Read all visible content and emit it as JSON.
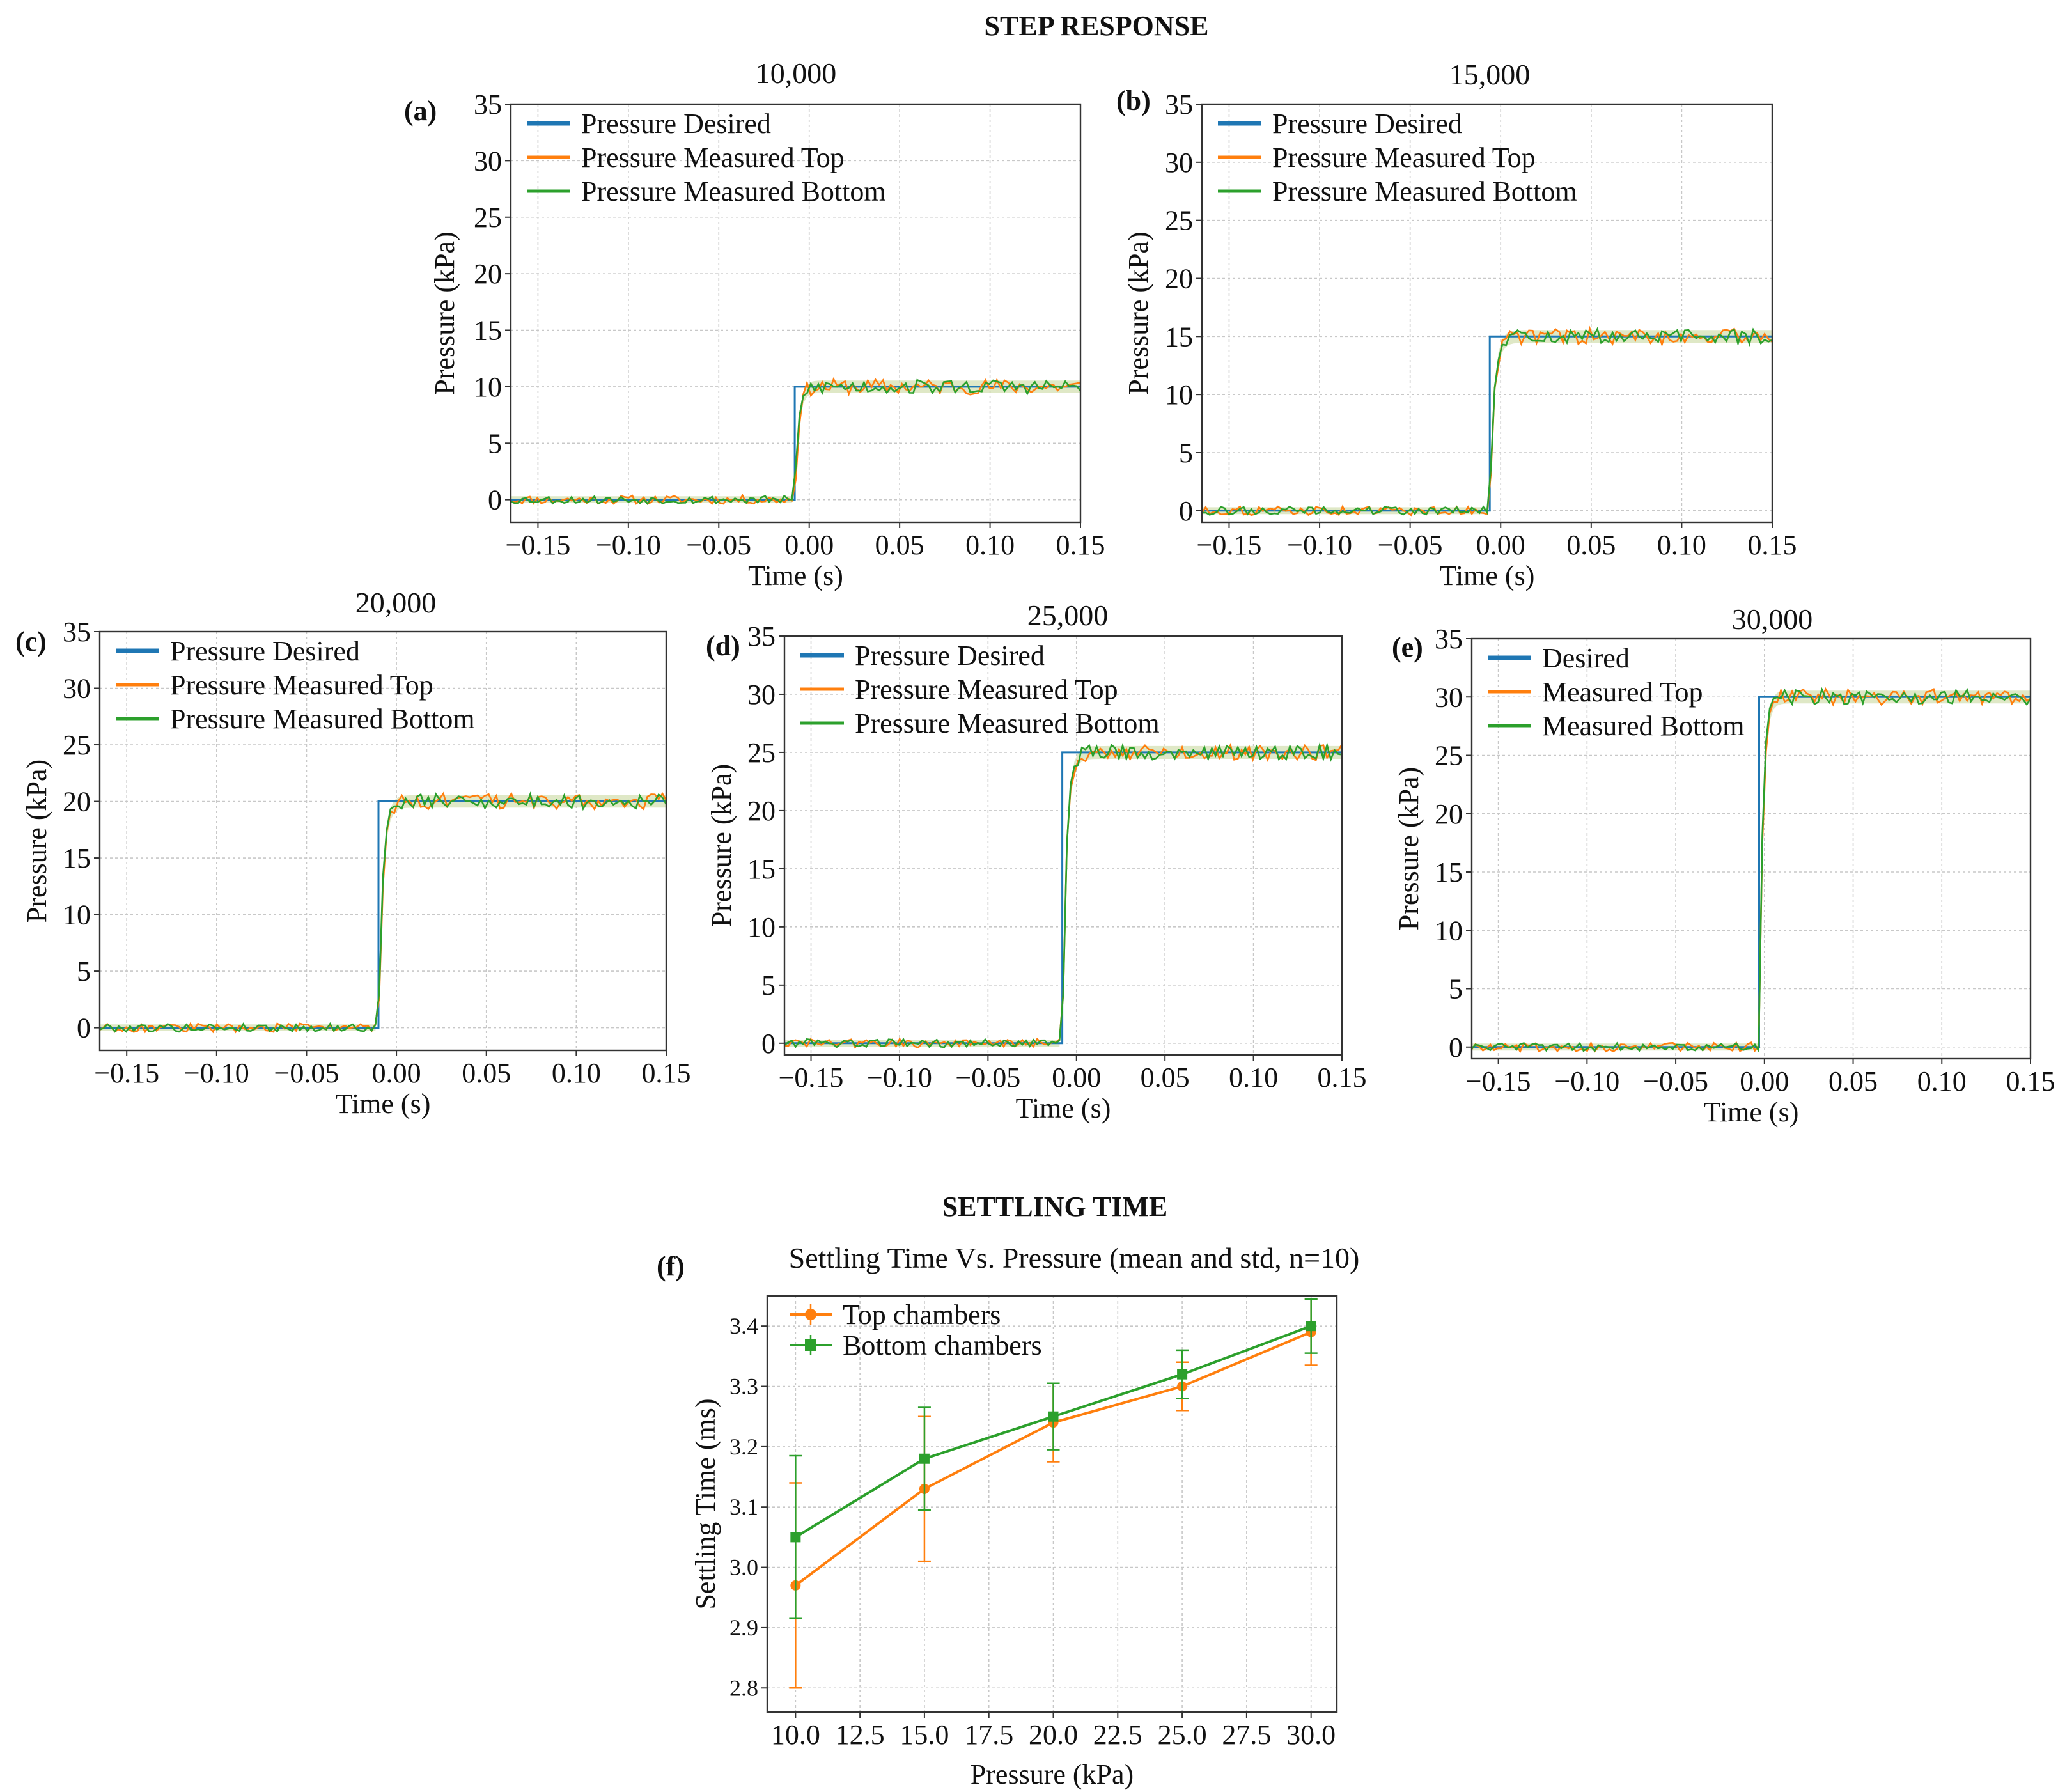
{
  "sections": {
    "step_response_title": "STEP RESPONSE",
    "settling_time_title": "SETTLING TIME"
  },
  "colors": {
    "desired": "#1f77b4",
    "measured_top": "#ff7f0e",
    "measured_bottom": "#2ca02c",
    "band": "#c9d8a0"
  },
  "chart_data": [
    {
      "id": "a",
      "panel_label": "(a)",
      "type": "line",
      "title": "10,000",
      "xlabel": "Time (s)",
      "ylabel": "Pressure (kPa)",
      "xlim": [
        -0.165,
        0.15
      ],
      "ylim": [
        -2,
        35
      ],
      "grid": true,
      "xticks": [
        -0.15,
        -0.1,
        -0.05,
        0.0,
        0.05,
        0.1,
        0.15
      ],
      "xtick_labels": [
        "−0.15",
        "−0.10",
        "−0.05",
        "0.00",
        "0.05",
        "0.10",
        "0.15"
      ],
      "yticks": [
        0,
        5,
        10,
        15,
        20,
        25,
        30,
        35
      ],
      "ytick_labels": [
        "0",
        "5",
        "10",
        "15",
        "20",
        "25",
        "30",
        "35"
      ],
      "legend": [
        "Pressure Desired",
        "Pressure Measured Top",
        "Pressure Measured Bottom"
      ],
      "legend_loc": "upper-left",
      "step_time": -0.008,
      "step_value": 10,
      "rise_time": 0.006
    },
    {
      "id": "b",
      "panel_label": "(b)",
      "type": "line",
      "title": "15,000",
      "xlabel": "Time (s)",
      "ylabel": "Pressure (kPa)",
      "xlim": [
        -0.165,
        0.15
      ],
      "ylim": [
        -1,
        35
      ],
      "grid": true,
      "xticks": [
        -0.15,
        -0.1,
        -0.05,
        0.0,
        0.05,
        0.1,
        0.15
      ],
      "xtick_labels": [
        "−0.15",
        "−0.10",
        "−0.05",
        "0.00",
        "0.05",
        "0.10",
        "0.15"
      ],
      "yticks": [
        0,
        5,
        10,
        15,
        20,
        25,
        30,
        35
      ],
      "ytick_labels": [
        "0",
        "5",
        "10",
        "15",
        "20",
        "25",
        "30",
        "35"
      ],
      "legend": [
        "Pressure Desired",
        "Pressure Measured Top",
        "Pressure Measured Bottom"
      ],
      "legend_loc": "upper-left",
      "step_time": -0.006,
      "step_value": 15,
      "rise_time": 0.007
    },
    {
      "id": "c",
      "panel_label": "(c)",
      "type": "line",
      "title": "20,000",
      "xlabel": "Time (s)",
      "ylabel": "Pressure (kPa)",
      "xlim": [
        -0.165,
        0.15
      ],
      "ylim": [
        -2,
        35
      ],
      "grid": true,
      "xticks": [
        -0.15,
        -0.1,
        -0.05,
        0.0,
        0.05,
        0.1,
        0.15
      ],
      "xtick_labels": [
        "−0.15",
        "−0.10",
        "−0.05",
        "0.00",
        "0.05",
        "0.10",
        "0.15"
      ],
      "yticks": [
        0,
        5,
        10,
        15,
        20,
        25,
        30,
        35
      ],
      "ytick_labels": [
        "0",
        "5",
        "10",
        "15",
        "20",
        "25",
        "30",
        "35"
      ],
      "legend": [
        "Pressure Desired",
        "Pressure Measured Top",
        "Pressure Measured Bottom"
      ],
      "legend_loc": "upper-left",
      "step_time": -0.01,
      "step_value": 20,
      "rise_time": 0.007
    },
    {
      "id": "d",
      "panel_label": "(d)",
      "type": "line",
      "title": "25,000",
      "xlabel": "Time (s)",
      "ylabel": "Pressure (kPa)",
      "xlim": [
        -0.165,
        0.15
      ],
      "ylim": [
        -1,
        35
      ],
      "grid": true,
      "xticks": [
        -0.15,
        -0.1,
        -0.05,
        0.0,
        0.05,
        0.1,
        0.15
      ],
      "xtick_labels": [
        "−0.15",
        "−0.10",
        "−0.05",
        "0.00",
        "0.05",
        "0.10",
        "0.15"
      ],
      "yticks": [
        0,
        5,
        10,
        15,
        20,
        25,
        30,
        35
      ],
      "ytick_labels": [
        "0",
        "5",
        "10",
        "15",
        "20",
        "25",
        "30",
        "35"
      ],
      "legend": [
        "Pressure Desired",
        "Pressure Measured Top",
        "Pressure Measured Bottom"
      ],
      "legend_loc": "upper-left",
      "step_time": -0.008,
      "step_value": 25,
      "rise_time": 0.007
    },
    {
      "id": "e",
      "panel_label": "(e)",
      "type": "line",
      "title": "30,000",
      "xlabel": "Time (s)",
      "ylabel": "Pressure (kPa)",
      "xlim": [
        -0.165,
        0.15
      ],
      "ylim": [
        -1,
        35
      ],
      "grid": true,
      "xticks": [
        -0.15,
        -0.1,
        -0.05,
        0.0,
        0.05,
        0.1,
        0.15
      ],
      "xtick_labels": [
        "−0.15",
        "−0.10",
        "−0.05",
        "0.00",
        "0.05",
        "0.10",
        "0.15"
      ],
      "yticks": [
        0,
        5,
        10,
        15,
        20,
        25,
        30,
        35
      ],
      "ytick_labels": [
        "0",
        "5",
        "10",
        "15",
        "20",
        "25",
        "30",
        "35"
      ],
      "legend": [
        "Desired",
        "Measured Top",
        "Measured Bottom"
      ],
      "legend_loc": "upper-left",
      "step_time": -0.003,
      "step_value": 30,
      "rise_time": 0.006
    },
    {
      "id": "f",
      "panel_label": "(f)",
      "type": "line",
      "title": "Settling Time Vs. Pressure (mean and std, n=10)",
      "xlabel": "Pressure (kPa)",
      "ylabel": "Settling Time (ms)",
      "xlim": [
        8.9,
        31.0
      ],
      "ylim": [
        2.76,
        3.45
      ],
      "grid": true,
      "xticks": [
        10,
        12.5,
        15,
        17.5,
        20,
        22.5,
        25,
        27.5,
        30
      ],
      "xtick_labels": [
        "10.0",
        "12.5",
        "15.0",
        "17.5",
        "20.0",
        "22.5",
        "25.0",
        "27.5",
        "30.0"
      ],
      "yticks": [
        2.8,
        2.9,
        3.0,
        3.1,
        3.2,
        3.3,
        3.4
      ],
      "ytick_labels": [
        "2.8",
        "2.9",
        "3.0",
        "3.1",
        "3.2",
        "3.3",
        "3.4"
      ],
      "legend_loc": "upper-left",
      "x": [
        10,
        15,
        20,
        25,
        30
      ],
      "series": [
        {
          "name": "Top chambers",
          "marker": "circle",
          "color": "#ff7f0e",
          "values": [
            2.97,
            3.13,
            3.24,
            3.3,
            3.39
          ],
          "err": [
            0.17,
            0.12,
            0.065,
            0.04,
            0.055
          ]
        },
        {
          "name": "Bottom chambers",
          "marker": "square",
          "color": "#2ca02c",
          "values": [
            3.05,
            3.18,
            3.25,
            3.32,
            3.4
          ],
          "err": [
            0.135,
            0.085,
            0.055,
            0.04,
            0.045
          ]
        }
      ]
    }
  ]
}
